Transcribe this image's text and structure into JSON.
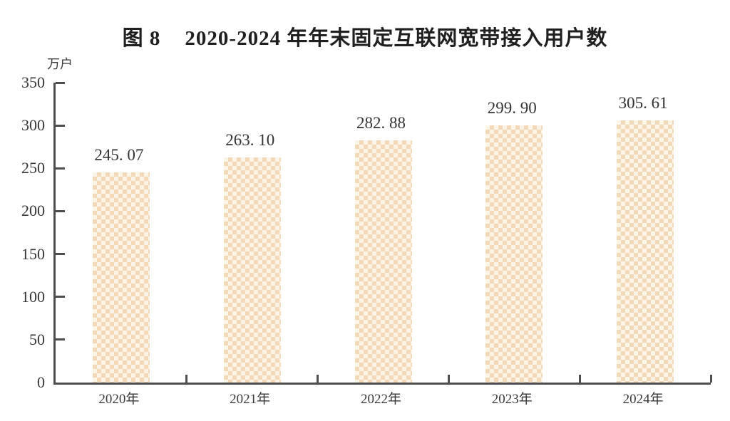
{
  "page": {
    "background": "#ffffff"
  },
  "title": {
    "prefix": "图 8",
    "text": "2020-2024 年年末固定互联网宽带接入用户数"
  },
  "chart_data": {
    "type": "bar",
    "title": "图 8  2020-2024 年年末固定互联网宽带接入用户数",
    "unit_label": "万户",
    "categories": [
      "2020年",
      "2021年",
      "2022年",
      "2023年",
      "2024年"
    ],
    "values": [
      245.07,
      263.1,
      282.88,
      299.9,
      305.61
    ],
    "value_labels": [
      "245. 07",
      "263. 10",
      "282. 88",
      "299. 90",
      "305. 61"
    ],
    "xlabel": "",
    "ylabel": "万户",
    "ylim": [
      0,
      350
    ],
    "yticks": [
      0,
      50,
      100,
      150,
      200,
      250,
      300,
      350
    ],
    "grid": false,
    "legend": "none",
    "bar_pattern": "checkerboard",
    "bar_pattern_colors": [
      "#f3d9b7",
      "#fcf4e6"
    ],
    "axis_color": "#4e4e4e",
    "text_color": "#333333"
  }
}
